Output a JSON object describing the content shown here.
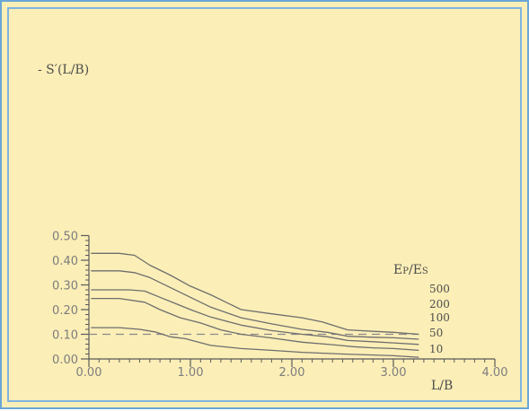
{
  "chart_data": {
    "type": "line",
    "xlabel": "L/B",
    "ylabel": "- S′(L/B)",
    "xlim": [
      0,
      4
    ],
    "ylim": [
      0,
      0.5
    ],
    "x_ticks": [
      "0.00",
      "1.00",
      "2.00",
      "3.00",
      "4.00"
    ],
    "y_ticks": [
      "0.00",
      "0.10",
      "0.20",
      "0.30",
      "0.40",
      "0.50"
    ],
    "grid": false,
    "legend_title": "Ep/Es",
    "reference_line": {
      "y": 0.1,
      "style": "dashed"
    },
    "series": [
      {
        "name": "500",
        "points": [
          [
            0.02,
            0.428
          ],
          [
            0.3,
            0.428
          ],
          [
            0.45,
            0.42
          ],
          [
            0.6,
            0.38
          ],
          [
            0.8,
            0.34
          ],
          [
            1.0,
            0.295
          ],
          [
            1.2,
            0.26
          ],
          [
            1.5,
            0.2
          ],
          [
            1.8,
            0.183
          ],
          [
            2.1,
            0.167
          ],
          [
            2.3,
            0.15
          ],
          [
            2.55,
            0.118
          ],
          [
            2.8,
            0.112
          ],
          [
            3.0,
            0.108
          ],
          [
            3.25,
            0.1
          ]
        ]
      },
      {
        "name": "200",
        "points": [
          [
            0.02,
            0.357
          ],
          [
            0.3,
            0.357
          ],
          [
            0.45,
            0.35
          ],
          [
            0.6,
            0.33
          ],
          [
            0.8,
            0.29
          ],
          [
            1.0,
            0.25
          ],
          [
            1.2,
            0.21
          ],
          [
            1.5,
            0.167
          ],
          [
            1.8,
            0.142
          ],
          [
            2.1,
            0.12
          ],
          [
            2.35,
            0.108
          ],
          [
            2.55,
            0.092
          ],
          [
            2.8,
            0.088
          ],
          [
            3.0,
            0.086
          ],
          [
            3.25,
            0.08
          ]
        ]
      },
      {
        "name": "100",
        "points": [
          [
            0.02,
            0.28
          ],
          [
            0.4,
            0.28
          ],
          [
            0.55,
            0.275
          ],
          [
            0.7,
            0.25
          ],
          [
            0.85,
            0.225
          ],
          [
            1.0,
            0.2
          ],
          [
            1.2,
            0.17
          ],
          [
            1.5,
            0.137
          ],
          [
            1.8,
            0.115
          ],
          [
            2.1,
            0.1
          ],
          [
            2.35,
            0.09
          ],
          [
            2.55,
            0.075
          ],
          [
            2.8,
            0.07
          ],
          [
            3.0,
            0.065
          ],
          [
            3.25,
            0.059
          ]
        ]
      },
      {
        "name": "50",
        "points": [
          [
            0.02,
            0.245
          ],
          [
            0.3,
            0.245
          ],
          [
            0.55,
            0.23
          ],
          [
            0.7,
            0.2
          ],
          [
            0.9,
            0.167
          ],
          [
            1.1,
            0.146
          ],
          [
            1.3,
            0.118
          ],
          [
            1.5,
            0.1
          ],
          [
            1.8,
            0.085
          ],
          [
            2.1,
            0.068
          ],
          [
            2.4,
            0.058
          ],
          [
            2.6,
            0.05
          ],
          [
            2.8,
            0.045
          ],
          [
            3.0,
            0.042
          ],
          [
            3.25,
            0.035
          ]
        ]
      },
      {
        "name": "10",
        "points": [
          [
            0.02,
            0.127
          ],
          [
            0.3,
            0.127
          ],
          [
            0.5,
            0.12
          ],
          [
            0.65,
            0.11
          ],
          [
            0.8,
            0.09
          ],
          [
            0.95,
            0.082
          ],
          [
            1.2,
            0.055
          ],
          [
            1.5,
            0.042
          ],
          [
            1.8,
            0.035
          ],
          [
            2.1,
            0.027
          ],
          [
            2.5,
            0.02
          ],
          [
            2.8,
            0.016
          ],
          [
            3.0,
            0.013
          ],
          [
            3.25,
            0.007
          ]
        ]
      }
    ]
  }
}
